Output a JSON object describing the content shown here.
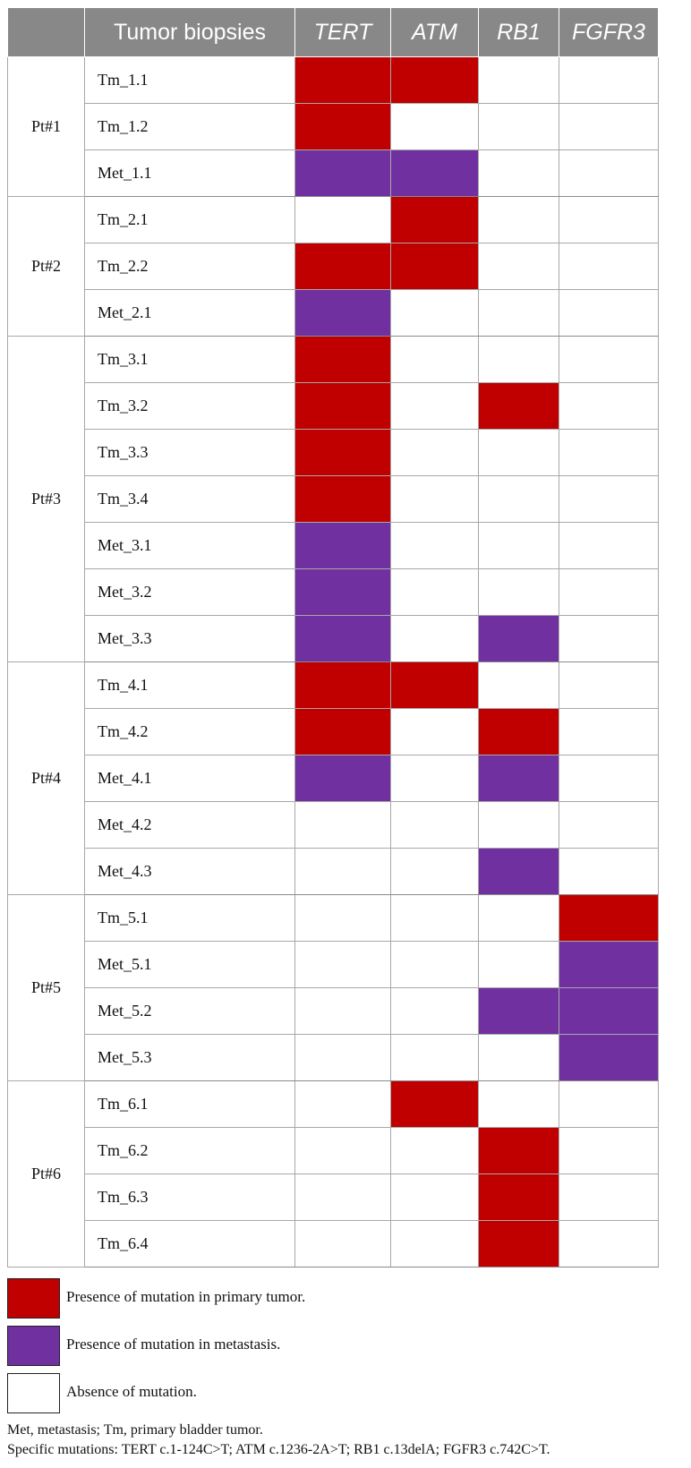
{
  "table": {
    "header": {
      "corner": "",
      "biopsies_label": "Tumor biopsies",
      "genes": [
        "TERT",
        "ATM",
        "RB1",
        "FGFR3"
      ]
    },
    "groups": [
      {
        "patient": "Pt#1",
        "rows": [
          {
            "biopsy": "Tm_1.1",
            "cells": [
              "primary",
              "primary",
              "none",
              "none"
            ]
          },
          {
            "biopsy": "Tm_1.2",
            "cells": [
              "primary",
              "none",
              "none",
              "none"
            ]
          },
          {
            "biopsy": "Met_1.1",
            "cells": [
              "metastasis",
              "metastasis",
              "none",
              "none"
            ]
          }
        ]
      },
      {
        "patient": "Pt#2",
        "rows": [
          {
            "biopsy": "Tm_2.1",
            "cells": [
              "none",
              "primary",
              "none",
              "none"
            ]
          },
          {
            "biopsy": "Tm_2.2",
            "cells": [
              "primary",
              "primary",
              "none",
              "none"
            ]
          },
          {
            "biopsy": "Met_2.1",
            "cells": [
              "metastasis",
              "none",
              "none",
              "none"
            ]
          }
        ]
      },
      {
        "patient": "Pt#3",
        "rows": [
          {
            "biopsy": "Tm_3.1",
            "cells": [
              "primary",
              "none",
              "none",
              "none"
            ]
          },
          {
            "biopsy": "Tm_3.2",
            "cells": [
              "primary",
              "none",
              "primary",
              "none"
            ]
          },
          {
            "biopsy": "Tm_3.3",
            "cells": [
              "primary",
              "none",
              "none",
              "none"
            ]
          },
          {
            "biopsy": "Tm_3.4",
            "cells": [
              "primary",
              "none",
              "none",
              "none"
            ]
          },
          {
            "biopsy": "Met_3.1",
            "cells": [
              "metastasis",
              "none",
              "none",
              "none"
            ]
          },
          {
            "biopsy": "Met_3.2",
            "cells": [
              "metastasis",
              "none",
              "none",
              "none"
            ]
          },
          {
            "biopsy": "Met_3.3",
            "cells": [
              "metastasis",
              "none",
              "metastasis",
              "none"
            ]
          }
        ]
      },
      {
        "patient": "Pt#4",
        "rows": [
          {
            "biopsy": "Tm_4.1",
            "cells": [
              "primary",
              "primary",
              "none",
              "none"
            ]
          },
          {
            "biopsy": "Tm_4.2",
            "cells": [
              "primary",
              "none",
              "primary",
              "none"
            ]
          },
          {
            "biopsy": "Met_4.1",
            "cells": [
              "metastasis",
              "none",
              "metastasis",
              "none"
            ]
          },
          {
            "biopsy": "Met_4.2",
            "cells": [
              "none",
              "none",
              "none",
              "none"
            ]
          },
          {
            "biopsy": "Met_4.3",
            "cells": [
              "none",
              "none",
              "metastasis",
              "none"
            ]
          }
        ]
      },
      {
        "patient": "Pt#5",
        "rows": [
          {
            "biopsy": "Tm_5.1",
            "cells": [
              "none",
              "none",
              "none",
              "primary"
            ]
          },
          {
            "biopsy": "Met_5.1",
            "cells": [
              "none",
              "none",
              "none",
              "metastasis"
            ]
          },
          {
            "biopsy": "Met_5.2",
            "cells": [
              "none",
              "none",
              "metastasis",
              "metastasis"
            ]
          },
          {
            "biopsy": "Met_5.3",
            "cells": [
              "none",
              "none",
              "none",
              "metastasis"
            ]
          }
        ]
      },
      {
        "patient": "Pt#6",
        "rows": [
          {
            "biopsy": "Tm_6.1",
            "cells": [
              "none",
              "primary",
              "none",
              "none"
            ]
          },
          {
            "biopsy": "Tm_6.2",
            "cells": [
              "none",
              "none",
              "primary",
              "none"
            ]
          },
          {
            "biopsy": "Tm_6.3",
            "cells": [
              "none",
              "none",
              "primary",
              "none"
            ]
          },
          {
            "biopsy": "Tm_6.4",
            "cells": [
              "none",
              "none",
              "primary",
              "none"
            ]
          }
        ]
      }
    ]
  },
  "legend": {
    "items": [
      {
        "key": "primary",
        "label": "Presence of mutation in primary tumor."
      },
      {
        "key": "metastasis",
        "label": "Presence of mutation in metastasis."
      },
      {
        "key": "absent",
        "label": "Absence of mutation."
      }
    ]
  },
  "footnotes": {
    "abbreviations": "Met, metastasis; Tm, primary bladder tumor.",
    "mutations": "Specific mutations: TERT c.1-124C>T; ATM c.1236-2A>T; RB1 c.13delA; FGFR3 c.742C>T."
  },
  "colors": {
    "primary": "#c00000",
    "metastasis": "#7030a0",
    "absent": "#ffffff",
    "header_bg": "#888888"
  }
}
